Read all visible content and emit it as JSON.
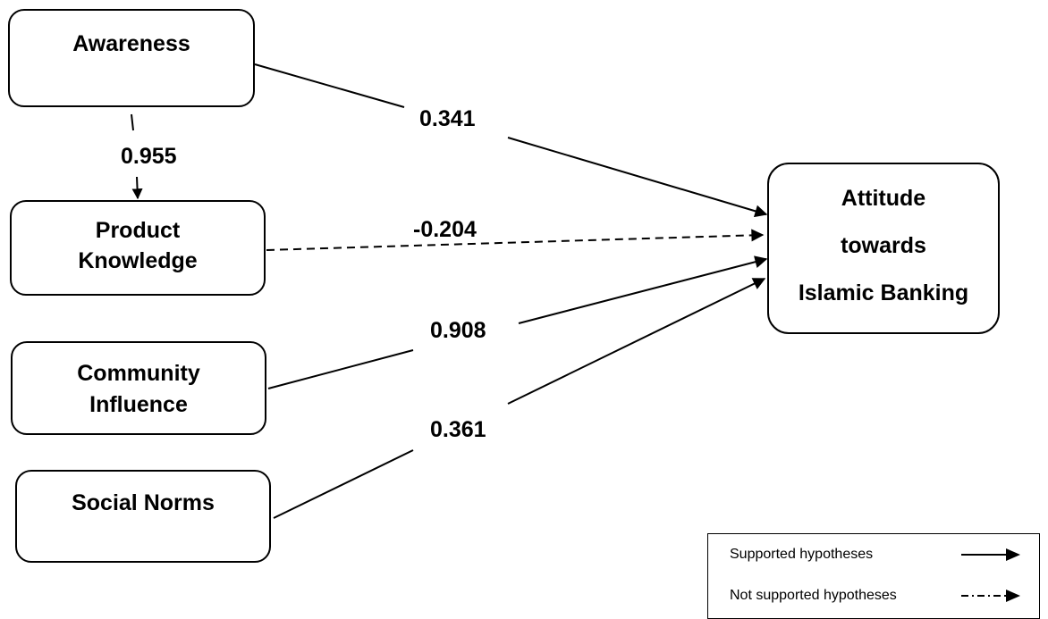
{
  "nodes": {
    "awareness": {
      "label": "Awareness"
    },
    "product_knowledge": {
      "line1": "Product",
      "line2": "Knowledge"
    },
    "community_influence": {
      "line1": "Community",
      "line2": "Influence"
    },
    "social_norms": {
      "label": "Social Norms"
    },
    "attitude": {
      "line1": "Attitude",
      "line2": "towards",
      "line3": "Islamic Banking"
    }
  },
  "edges": [
    {
      "from": "Awareness",
      "to": "Product Knowledge",
      "coefficient": "0.955",
      "supported": true
    },
    {
      "from": "Awareness",
      "to": "Attitude towards Islamic Banking",
      "coefficient": "0.341",
      "supported": true
    },
    {
      "from": "Product Knowledge",
      "to": "Attitude towards Islamic Banking",
      "coefficient": "-0.204",
      "supported": false
    },
    {
      "from": "Community Influence",
      "to": "Attitude towards Islamic Banking",
      "coefficient": "0.908",
      "supported": true
    },
    {
      "from": "Social Norms",
      "to": "Attitude towards Islamic Banking",
      "coefficient": "0.361",
      "supported": true
    }
  ],
  "legend": {
    "supported_label": "Supported hypotheses",
    "not_supported_label": "Not supported hypotheses"
  },
  "colors": {
    "stroke": "#000000",
    "background": "#ffffff"
  }
}
